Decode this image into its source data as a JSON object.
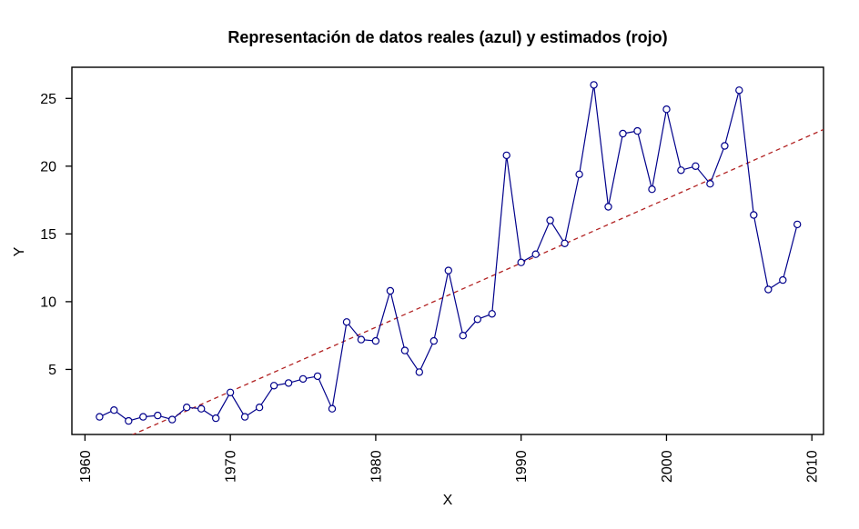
{
  "figure": {
    "background": "#ffffff",
    "axis_color": "#000000"
  },
  "chart_data": {
    "type": "line",
    "title": "Representación de datos reales (azul) y estimados (rojo)",
    "xlabel": "X",
    "ylabel": "Y",
    "xlim": [
      1959.1,
      2010.8
    ],
    "ylim": [
      0.2,
      27.3
    ],
    "x_ticks": [
      1960,
      1970,
      1980,
      1990,
      2000,
      2010
    ],
    "y_ticks": [
      5,
      10,
      15,
      20,
      25
    ],
    "grid": false,
    "legend": "none",
    "series": [
      {
        "name": "datos reales (azul)",
        "style": "solid line with open circle markers",
        "color": "#00008B",
        "x": [
          1961,
          1962,
          1963,
          1964,
          1965,
          1966,
          1967,
          1968,
          1969,
          1970,
          1971,
          1972,
          1973,
          1974,
          1975,
          1976,
          1977,
          1978,
          1979,
          1980,
          1981,
          1982,
          1983,
          1984,
          1985,
          1986,
          1987,
          1988,
          1989,
          1990,
          1991,
          1992,
          1993,
          1994,
          1995,
          1996,
          1997,
          1998,
          1999,
          2000,
          2001,
          2002,
          2003,
          2004,
          2005,
          2006,
          2007,
          2008,
          2009
        ],
        "values": [
          1.5,
          2.0,
          1.2,
          1.5,
          1.6,
          1.3,
          2.2,
          2.1,
          1.4,
          3.3,
          1.5,
          2.2,
          3.8,
          4.0,
          4.3,
          4.5,
          2.1,
          8.5,
          7.2,
          7.1,
          10.8,
          6.4,
          4.8,
          7.1,
          12.3,
          7.5,
          8.7,
          9.1,
          20.8,
          12.9,
          13.5,
          16.0,
          14.3,
          19.4,
          26.0,
          17.0,
          22.4,
          22.6,
          18.3,
          24.2,
          19.7,
          20.0,
          18.7,
          21.5,
          25.6,
          16.4,
          10.9,
          11.6,
          15.7
        ]
      },
      {
        "name": "datos estimados (rojo)",
        "style": "dashed straight trend line",
        "color": "#B22222",
        "slope_per_year": 0.474,
        "value_at_1960": -1.37
      }
    ]
  }
}
